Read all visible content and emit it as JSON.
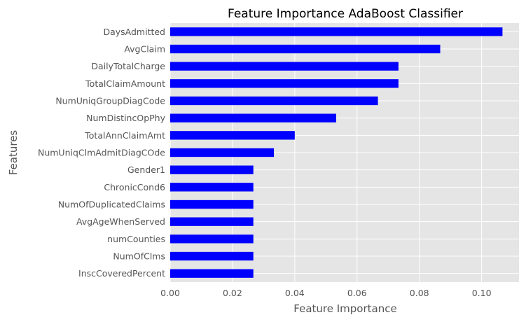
{
  "chart_data": {
    "type": "bar",
    "orientation": "horizontal",
    "title": "Feature Importance AdaBoost Classifier",
    "xlabel": "Feature Importance",
    "ylabel": "Features",
    "categories": [
      "DaysAdmitted",
      "AvgClaim",
      "DailyTotalCharge",
      "TotalClaimAmount",
      "NumUniqGroupDiagCode",
      "NumDistincOpPhy",
      "TotalAnnClaimAmt",
      "NumUniqClmAdmitDiagCOde",
      "Gender1",
      "ChronicCond6",
      "NumOfDuplicatedClaims",
      "AvgAgeWhenServed",
      "numCounties",
      "NumOfClms",
      "InscCoveredPercent"
    ],
    "values": [
      0.1067,
      0.0867,
      0.0733,
      0.0733,
      0.0667,
      0.0533,
      0.04,
      0.0333,
      0.0267,
      0.0267,
      0.0267,
      0.0267,
      0.0267,
      0.0267,
      0.0267
    ],
    "xlim": [
      0,
      0.112
    ],
    "xticks": [
      "0.00",
      "0.02",
      "0.04",
      "0.06",
      "0.08",
      "0.10"
    ],
    "xtick_values": [
      0,
      0.02,
      0.04,
      0.06,
      0.08,
      0.1
    ],
    "bar_color": "#0000ff",
    "background_color": "#e5e5e5",
    "grid": true
  }
}
